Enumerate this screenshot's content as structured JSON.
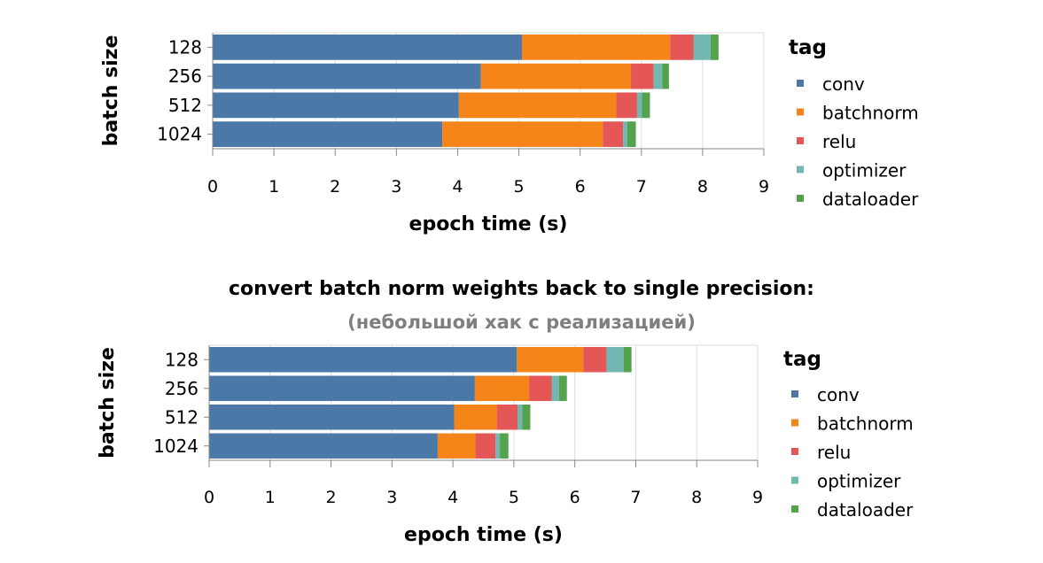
{
  "caption": {
    "main": "convert batch norm weights back to single precision:",
    "sub": "(небольшой хак с реализацией)"
  },
  "legend": {
    "title": "tag",
    "items": [
      {
        "label": "conv",
        "color": "#4c78a8"
      },
      {
        "label": "batchnorm",
        "color": "#f58518"
      },
      {
        "label": "relu",
        "color": "#e45756"
      },
      {
        "label": "optimizer",
        "color": "#72b7b2"
      },
      {
        "label": "dataloader",
        "color": "#54a24b"
      }
    ]
  },
  "chart_data": [
    {
      "type": "bar",
      "orientation": "horizontal",
      "stacked": true,
      "xlabel": "epoch time (s)",
      "ylabel": "batch size",
      "xlim": [
        0,
        9
      ],
      "xticks": [
        "0",
        "1",
        "2",
        "3",
        "4",
        "5",
        "6",
        "7",
        "8",
        "9"
      ],
      "grid": true,
      "legend_position": "right",
      "categories": [
        "128",
        "256",
        "512",
        "1024"
      ],
      "series": [
        {
          "name": "conv",
          "values": [
            5.05,
            4.38,
            4.02,
            3.75
          ]
        },
        {
          "name": "batchnorm",
          "values": [
            2.42,
            2.45,
            2.57,
            2.62
          ]
        },
        {
          "name": "relu",
          "values": [
            0.38,
            0.37,
            0.34,
            0.33
          ]
        },
        {
          "name": "optimizer",
          "values": [
            0.28,
            0.14,
            0.08,
            0.07
          ]
        },
        {
          "name": "dataloader",
          "values": [
            0.13,
            0.11,
            0.13,
            0.14
          ]
        }
      ]
    },
    {
      "type": "bar",
      "orientation": "horizontal",
      "stacked": true,
      "xlabel": "epoch time (s)",
      "ylabel": "batch size",
      "xlim": [
        0,
        9
      ],
      "xticks": [
        "0",
        "1",
        "2",
        "3",
        "4",
        "5",
        "6",
        "7",
        "8",
        "9"
      ],
      "grid": true,
      "legend_position": "right",
      "categories": [
        "128",
        "256",
        "512",
        "1024"
      ],
      "series": [
        {
          "name": "conv",
          "values": [
            5.05,
            4.36,
            4.02,
            3.75
          ]
        },
        {
          "name": "batchnorm",
          "values": [
            1.09,
            0.89,
            0.7,
            0.62
          ]
        },
        {
          "name": "relu",
          "values": [
            0.38,
            0.37,
            0.34,
            0.33
          ]
        },
        {
          "name": "optimizer",
          "values": [
            0.28,
            0.12,
            0.08,
            0.07
          ]
        },
        {
          "name": "dataloader",
          "values": [
            0.13,
            0.13,
            0.13,
            0.14
          ]
        }
      ]
    }
  ]
}
